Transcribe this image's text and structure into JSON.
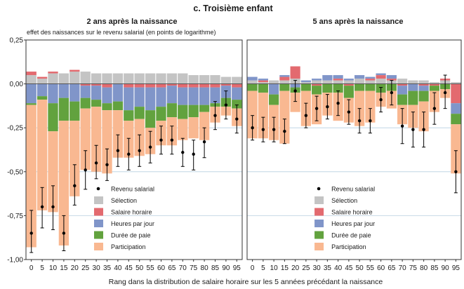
{
  "figure": {
    "title": "c. Troisième enfant",
    "ylabel": "effet des naissances sur le revenu salarial (en points de logarithme)",
    "xlabel": "Rang dans la distribution de salaire horaire sur les 5 années précédant la naissance",
    "legend_position": "bottom-left inside each panel",
    "colors": {
      "selection": "#c4c4c4",
      "salaire_horaire": "#e36a6f",
      "heures_par_jour": "#8095c9",
      "duree_de_paie": "#62a23e",
      "participation": "#f9b891",
      "revenu_salarial": "#000000",
      "gridline": "#b8cfe0"
    }
  },
  "chart_data": [
    {
      "type": "bar",
      "stacked": true,
      "title": "2 ans après la naissance",
      "ylim": [
        -1.0,
        0.25
      ],
      "yticks": [
        "0,25",
        "0,00",
        "-0,25",
        "-0,50",
        "-0,75",
        "-1,00"
      ],
      "grid": true,
      "categories": [
        "0",
        "5",
        "10",
        "15",
        "20",
        "25",
        "30",
        "35",
        "40",
        "45",
        "50",
        "55",
        "60",
        "65",
        "70",
        "75",
        "80",
        "85",
        "90",
        "95"
      ],
      "series": [
        {
          "name": "Sélection",
          "values": [
            0.05,
            0.03,
            0.06,
            0.06,
            0.07,
            0.07,
            0.06,
            0.06,
            0.06,
            0.06,
            0.06,
            0.06,
            0.06,
            0.06,
            0.06,
            0.05,
            0.05,
            0.05,
            0.04,
            0.04
          ]
        },
        {
          "name": "Salaire horaire",
          "values": [
            0.02,
            0.01,
            0.01,
            0.0,
            0.01,
            -0.01,
            -0.01,
            -0.02,
            0.0,
            -0.02,
            -0.02,
            -0.02,
            -0.02,
            -0.01,
            -0.02,
            -0.02,
            -0.02,
            -0.02,
            -0.01,
            -0.02
          ]
        },
        {
          "name": "Heures par jour",
          "values": [
            -0.11,
            -0.07,
            -0.11,
            -0.08,
            -0.1,
            -0.07,
            -0.08,
            -0.09,
            -0.1,
            -0.13,
            -0.11,
            -0.13,
            -0.11,
            -0.1,
            -0.1,
            -0.1,
            -0.1,
            -0.09,
            -0.07,
            -0.07
          ]
        },
        {
          "name": "Durée de paie",
          "values": [
            -0.01,
            -0.02,
            -0.16,
            -0.13,
            -0.11,
            -0.06,
            -0.04,
            -0.04,
            -0.05,
            -0.06,
            -0.07,
            -0.1,
            -0.08,
            -0.08,
            -0.08,
            -0.07,
            -0.04,
            -0.02,
            -0.05,
            -0.05
          ]
        },
        {
          "name": "Participation",
          "values": [
            -0.81,
            -0.63,
            -0.46,
            -0.71,
            -0.43,
            -0.35,
            -0.37,
            -0.36,
            -0.27,
            -0.21,
            -0.21,
            -0.15,
            -0.14,
            -0.16,
            -0.12,
            -0.12,
            -0.16,
            -0.09,
            -0.05,
            -0.1
          ]
        }
      ],
      "revenu_salarial": {
        "name": "Revenu salarial",
        "values": [
          -0.85,
          -0.7,
          -0.7,
          -0.85,
          -0.58,
          -0.49,
          -0.45,
          -0.46,
          -0.38,
          -0.4,
          -0.38,
          -0.36,
          -0.32,
          -0.32,
          -0.39,
          -0.4,
          -0.33,
          -0.18,
          -0.12,
          -0.2
        ],
        "ci_low": [
          -0.96,
          -0.82,
          -0.83,
          -0.95,
          -0.69,
          -0.6,
          -0.54,
          -0.55,
          -0.47,
          -0.49,
          -0.47,
          -0.45,
          -0.4,
          -0.4,
          -0.47,
          -0.49,
          -0.42,
          -0.26,
          -0.2,
          -0.28
        ],
        "ci_high": [
          -0.72,
          -0.59,
          -0.58,
          -0.75,
          -0.46,
          -0.38,
          -0.35,
          -0.37,
          -0.29,
          -0.31,
          -0.29,
          -0.27,
          -0.24,
          -0.24,
          -0.31,
          -0.32,
          -0.25,
          -0.1,
          -0.04,
          -0.12
        ]
      }
    },
    {
      "type": "bar",
      "stacked": true,
      "title": "5 ans après la naissance",
      "ylim": [
        -1.0,
        0.25
      ],
      "grid": true,
      "categories": [
        "0",
        "5",
        "10",
        "15",
        "20",
        "25",
        "30",
        "35",
        "40",
        "45",
        "50",
        "55",
        "60",
        "65",
        "70",
        "75",
        "80",
        "85",
        "90",
        "95"
      ],
      "series": [
        {
          "name": "Sélection",
          "values": [
            0.02,
            0.01,
            0.02,
            0.02,
            0.03,
            0.01,
            0.02,
            0.02,
            0.02,
            0.02,
            0.03,
            0.02,
            0.03,
            0.02,
            0.03,
            0.02,
            0.02,
            0.01,
            0.02,
            0.01
          ]
        },
        {
          "name": "Salaire horaire",
          "values": [
            0.0,
            0.01,
            0.0,
            0.02,
            0.07,
            0.0,
            -0.01,
            0.0,
            0.01,
            -0.01,
            0.0,
            0.01,
            0.02,
            0.01,
            -0.01,
            0.0,
            -0.01,
            -0.01,
            0.01,
            -0.11
          ]
        },
        {
          "name": "Heures par jour",
          "values": [
            0.02,
            0.01,
            -0.06,
            0.01,
            -0.02,
            0.01,
            0.01,
            0.03,
            0.02,
            0.01,
            0.02,
            0.01,
            0.01,
            0.02,
            -0.05,
            -0.04,
            -0.03,
            0.0,
            0.0,
            -0.06
          ]
        },
        {
          "name": "Durée de paie",
          "values": [
            -0.04,
            -0.05,
            -0.06,
            -0.04,
            -0.03,
            -0.04,
            -0.05,
            -0.05,
            -0.05,
            -0.07,
            -0.04,
            -0.04,
            -0.05,
            -0.04,
            -0.06,
            -0.08,
            -0.06,
            -0.03,
            -0.03,
            -0.06
          ]
        },
        {
          "name": "Participation",
          "values": [
            -0.27,
            -0.26,
            -0.2,
            -0.3,
            -0.11,
            -0.2,
            -0.17,
            -0.13,
            -0.16,
            -0.14,
            -0.2,
            -0.18,
            -0.08,
            -0.1,
            -0.11,
            -0.13,
            -0.17,
            -0.12,
            -0.05,
            -0.28
          ]
        }
      ],
      "revenu_salarial": {
        "name": "Revenu salarial",
        "values": [
          -0.25,
          -0.26,
          -0.26,
          -0.27,
          -0.04,
          -0.18,
          -0.14,
          -0.13,
          -0.11,
          -0.16,
          -0.21,
          -0.21,
          -0.09,
          -0.05,
          -0.24,
          -0.26,
          -0.26,
          -0.14,
          -0.05,
          -0.5
        ],
        "ci_low": [
          -0.32,
          -0.33,
          -0.33,
          -0.34,
          -0.1,
          -0.25,
          -0.21,
          -0.2,
          -0.18,
          -0.23,
          -0.28,
          -0.28,
          -0.16,
          -0.12,
          -0.34,
          -0.36,
          -0.36,
          -0.23,
          -0.14,
          -0.62
        ],
        "ci_high": [
          -0.18,
          -0.19,
          -0.19,
          -0.2,
          0.02,
          -0.11,
          -0.07,
          -0.06,
          -0.04,
          -0.09,
          -0.14,
          -0.14,
          -0.02,
          0.02,
          -0.14,
          -0.16,
          -0.16,
          -0.05,
          0.05,
          -0.38
        ]
      }
    }
  ]
}
